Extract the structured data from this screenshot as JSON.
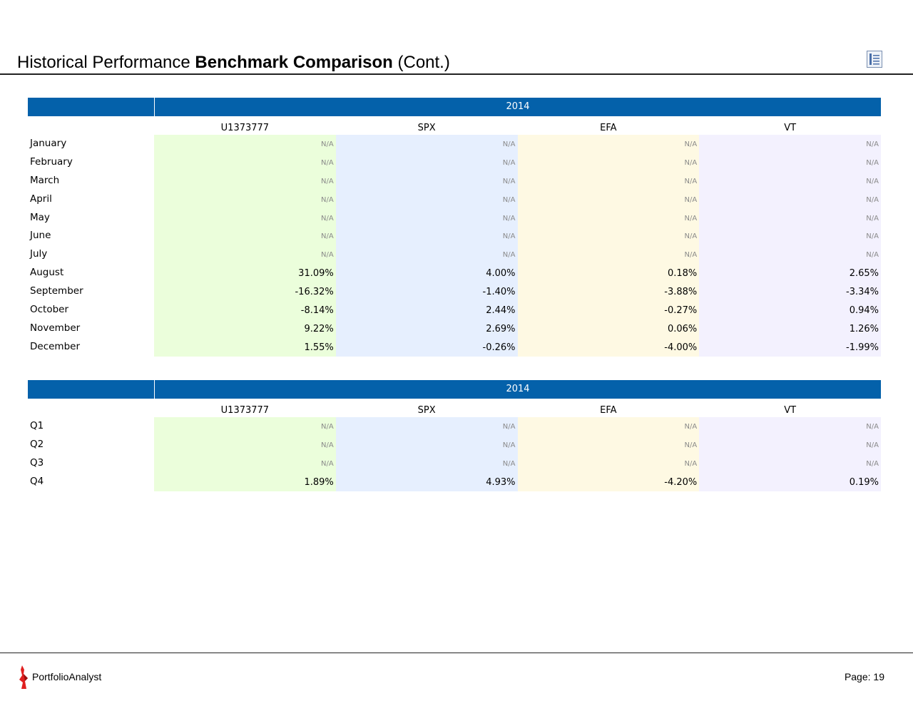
{
  "header": {
    "title_part1": "Historical Performance ",
    "title_bold": "Benchmark Comparison",
    "title_part3": " (Cont.)",
    "toc_icon": "table-of-contents-icon"
  },
  "columns": [
    "U1373777",
    "SPX",
    "EFA",
    "VT"
  ],
  "monthly": {
    "year": "2014",
    "rows": [
      {
        "label": "January",
        "values": [
          "N/A",
          "N/A",
          "N/A",
          "N/A"
        ]
      },
      {
        "label": "February",
        "values": [
          "N/A",
          "N/A",
          "N/A",
          "N/A"
        ]
      },
      {
        "label": "March",
        "values": [
          "N/A",
          "N/A",
          "N/A",
          "N/A"
        ]
      },
      {
        "label": "April",
        "values": [
          "N/A",
          "N/A",
          "N/A",
          "N/A"
        ]
      },
      {
        "label": "May",
        "values": [
          "N/A",
          "N/A",
          "N/A",
          "N/A"
        ]
      },
      {
        "label": "June",
        "values": [
          "N/A",
          "N/A",
          "N/A",
          "N/A"
        ]
      },
      {
        "label": "July",
        "values": [
          "N/A",
          "N/A",
          "N/A",
          "N/A"
        ]
      },
      {
        "label": "August",
        "values": [
          "31.09%",
          "4.00%",
          "0.18%",
          "2.65%"
        ]
      },
      {
        "label": "September",
        "values": [
          "-16.32%",
          "-1.40%",
          "-3.88%",
          "-3.34%"
        ]
      },
      {
        "label": "October",
        "values": [
          "-8.14%",
          "2.44%",
          "-0.27%",
          "0.94%"
        ]
      },
      {
        "label": "November",
        "values": [
          "9.22%",
          "2.69%",
          "0.06%",
          "1.26%"
        ]
      },
      {
        "label": "December",
        "values": [
          "1.55%",
          "-0.26%",
          "-4.00%",
          "-1.99%"
        ]
      }
    ]
  },
  "quarterly": {
    "year": "2014",
    "rows": [
      {
        "label": "Q1",
        "values": [
          "N/A",
          "N/A",
          "N/A",
          "N/A"
        ]
      },
      {
        "label": "Q2",
        "values": [
          "N/A",
          "N/A",
          "N/A",
          "N/A"
        ]
      },
      {
        "label": "Q3",
        "values": [
          "N/A",
          "N/A",
          "N/A",
          "N/A"
        ]
      },
      {
        "label": "Q4",
        "values": [
          "1.89%",
          "4.93%",
          "-4.20%",
          "0.19%"
        ]
      }
    ]
  },
  "colors": {
    "header_blue": "#0461aa",
    "col_bg": [
      "#ebfedb",
      "#e6effe",
      "#fef9e3",
      "#f3f1fe"
    ]
  },
  "footer": {
    "brand": "PortfolioAnalyst",
    "page": "Page: 19",
    "logo_icon": "portfolioanalyst-logo-icon"
  }
}
